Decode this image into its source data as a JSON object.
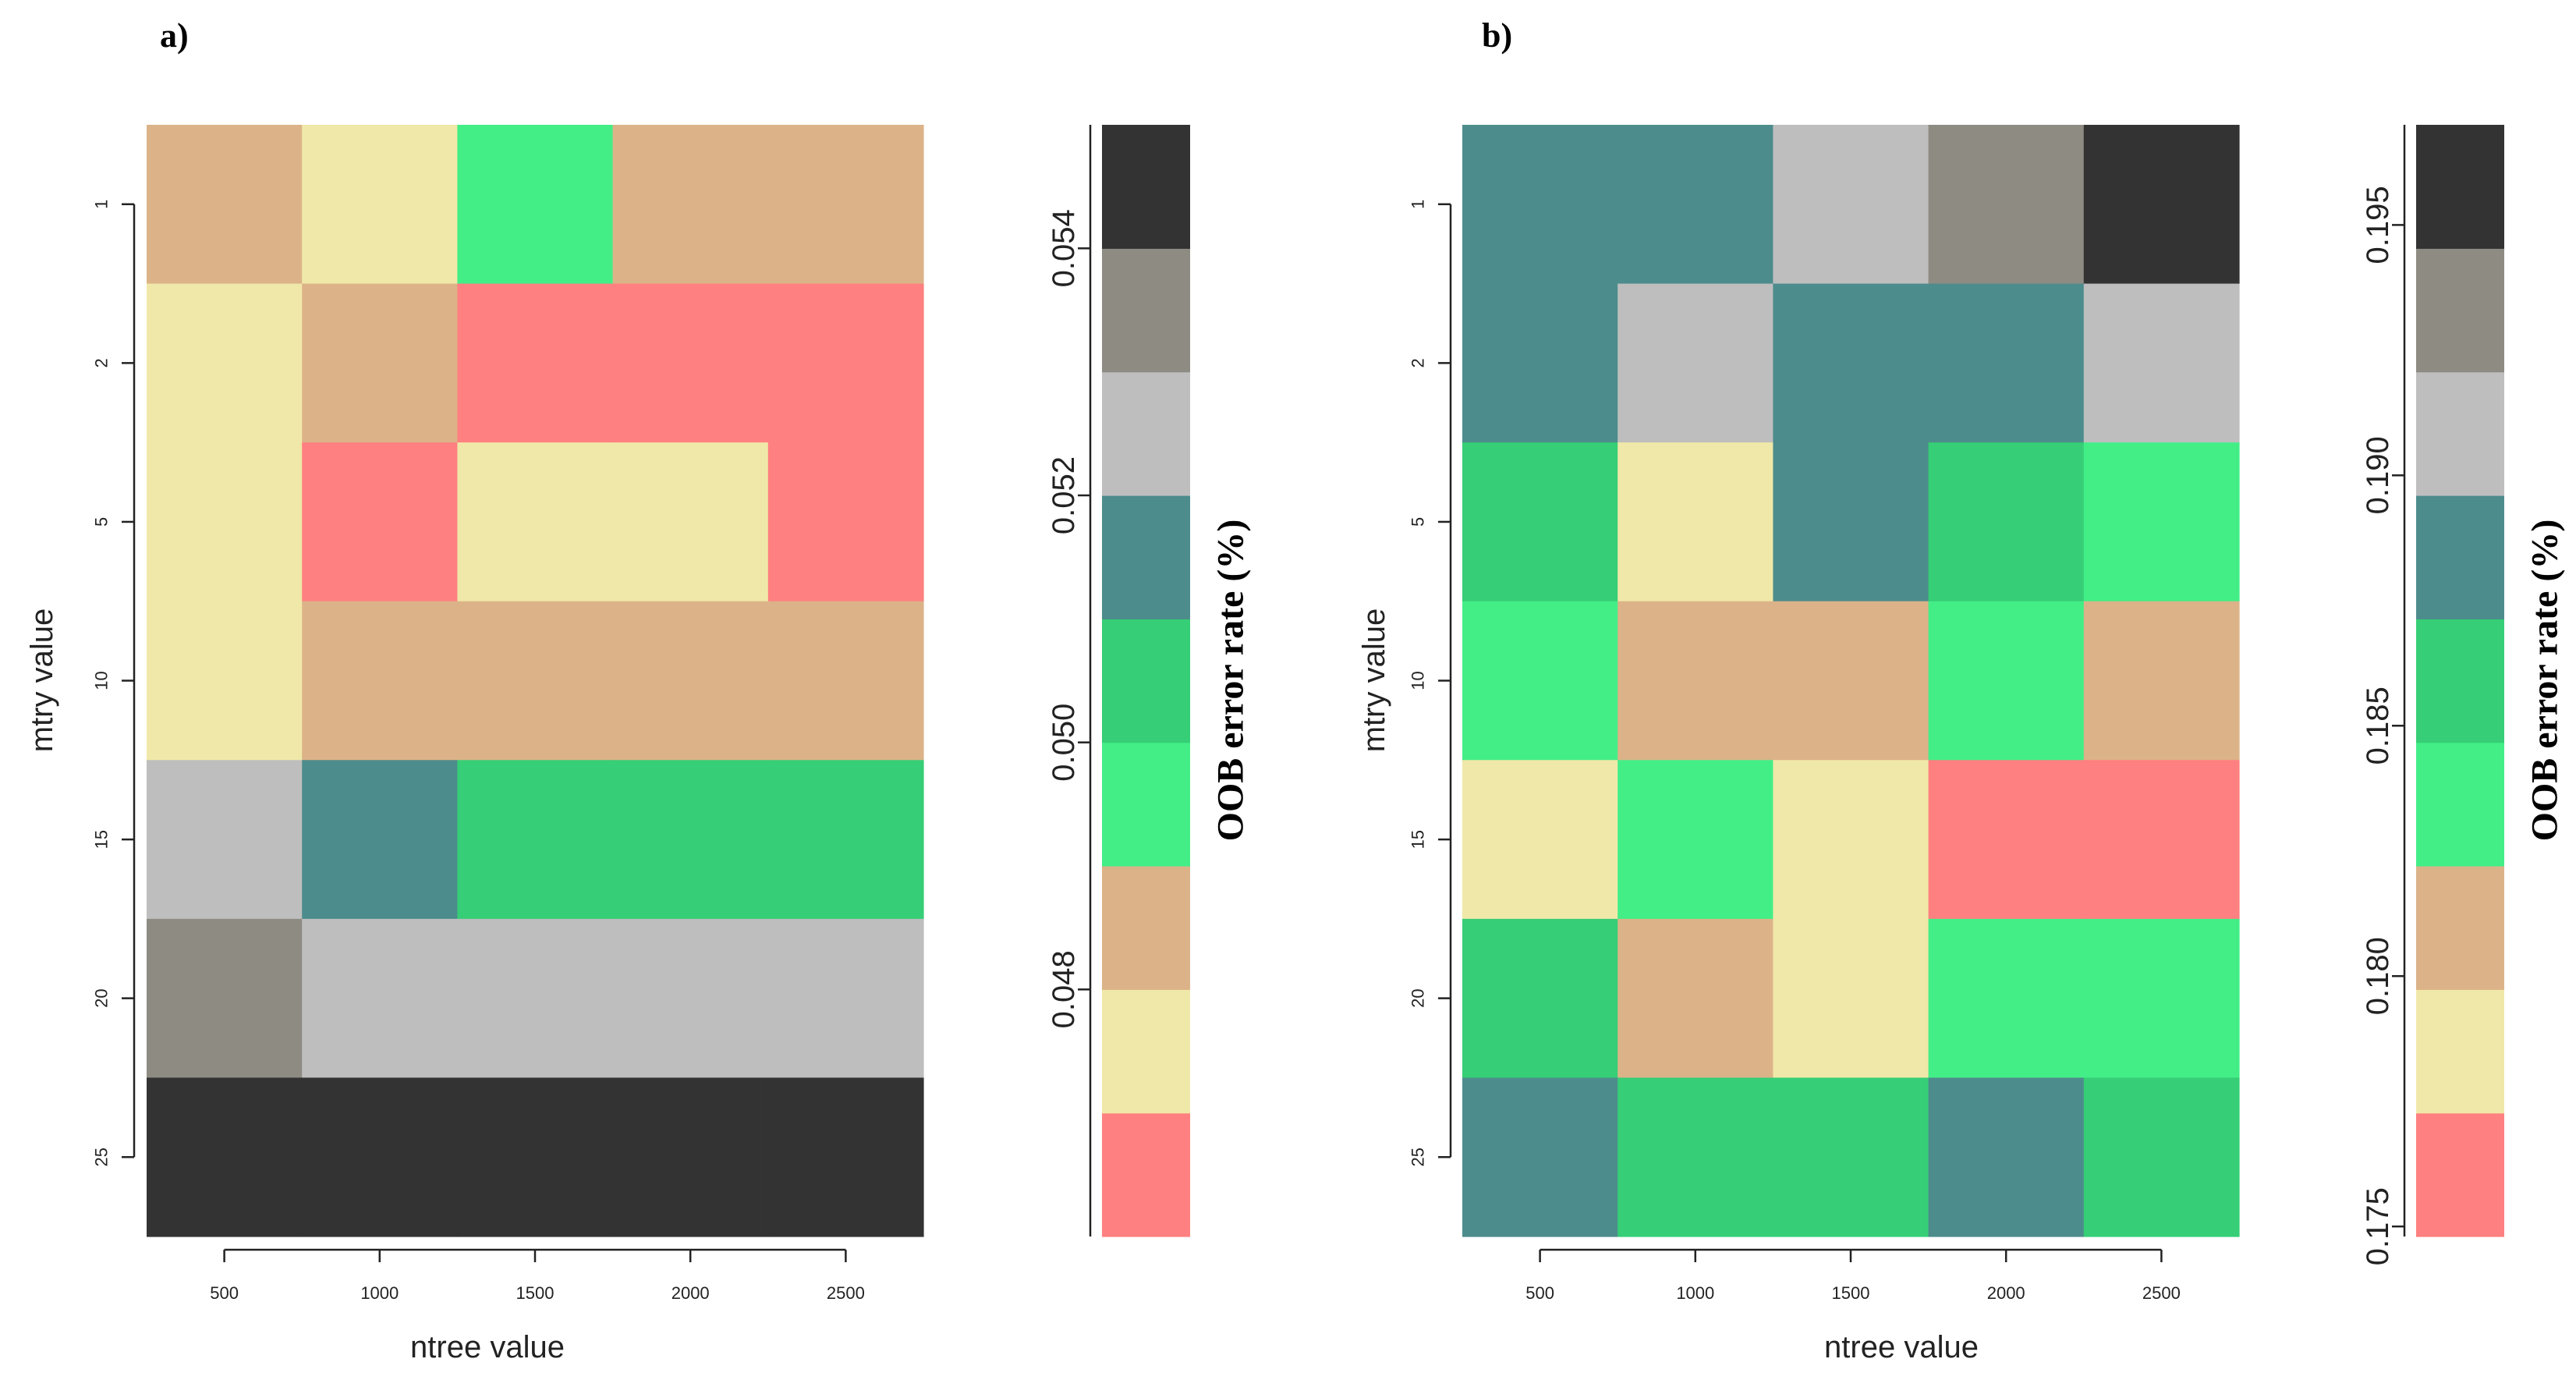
{
  "colors": {
    "red": "#FF8080",
    "yellow": "#F0E8A8",
    "tan": "#DCB388",
    "lightgreen": "#43EE87",
    "green": "#36CE76",
    "teal": "#4D8C8C",
    "lightgray": "#BEBEBE",
    "gray": "#8E8B83",
    "dark": "#333333"
  },
  "chart_data": [
    {
      "type": "heatmap",
      "panel_label": "a)",
      "xlabel": "ntree value",
      "ylabel": "mtry value",
      "x_categories": [
        "500",
        "1000",
        "1500",
        "2000",
        "2500"
      ],
      "y_categories": [
        "1",
        "2",
        "5",
        "10",
        "15",
        "20",
        "25"
      ],
      "cell_colors": [
        [
          "tan",
          "yellow",
          "lightgreen",
          "tan",
          "tan"
        ],
        [
          "yellow",
          "tan",
          "red",
          "red",
          "red"
        ],
        [
          "yellow",
          "red",
          "yellow",
          "yellow",
          "red"
        ],
        [
          "yellow",
          "tan",
          "tan",
          "tan",
          "tan"
        ],
        [
          "lightgray",
          "teal",
          "green",
          "green",
          "green"
        ],
        [
          "gray",
          "lightgray",
          "lightgray",
          "lightgray",
          "lightgray"
        ],
        [
          "dark",
          "dark",
          "dark",
          "dark",
          "dark"
        ]
      ],
      "colorbar": {
        "title": "OOB error rate (%)",
        "colors_bottom_to_top": [
          "red",
          "yellow",
          "tan",
          "lightgreen",
          "green",
          "teal",
          "lightgray",
          "gray",
          "dark"
        ],
        "range": [
          0.046,
          0.055
        ],
        "ticks": [
          0.048,
          0.05,
          0.052,
          0.054
        ],
        "tick_labels": [
          "0.048",
          "0.050",
          "0.052",
          "0.054"
        ]
      }
    },
    {
      "type": "heatmap",
      "panel_label": "b)",
      "xlabel": "ntree value",
      "ylabel": "mtry value",
      "x_categories": [
        "500",
        "1000",
        "1500",
        "2000",
        "2500"
      ],
      "y_categories": [
        "1",
        "2",
        "5",
        "10",
        "15",
        "20",
        "25"
      ],
      "cell_colors": [
        [
          "teal",
          "teal",
          "lightgray",
          "gray",
          "dark"
        ],
        [
          "teal",
          "lightgray",
          "teal",
          "teal",
          "lightgray"
        ],
        [
          "green",
          "yellow",
          "teal",
          "green",
          "lightgreen"
        ],
        [
          "lightgreen",
          "tan",
          "tan",
          "lightgreen",
          "tan"
        ],
        [
          "yellow",
          "lightgreen",
          "yellow",
          "red",
          "red"
        ],
        [
          "green",
          "tan",
          "yellow",
          "lightgreen",
          "lightgreen"
        ],
        [
          "teal",
          "green",
          "green",
          "teal",
          "green"
        ]
      ],
      "colorbar": {
        "title": "OOB error rate (%)",
        "colors_bottom_to_top": [
          "red",
          "yellow",
          "tan",
          "lightgreen",
          "green",
          "teal",
          "lightgray",
          "gray",
          "dark"
        ],
        "range": [
          0.1748,
          0.197
        ],
        "ticks": [
          0.175,
          0.18,
          0.185,
          0.19,
          0.195
        ],
        "tick_labels": [
          "0.175",
          "0.180",
          "0.185",
          "0.190",
          "0.195"
        ]
      }
    }
  ]
}
